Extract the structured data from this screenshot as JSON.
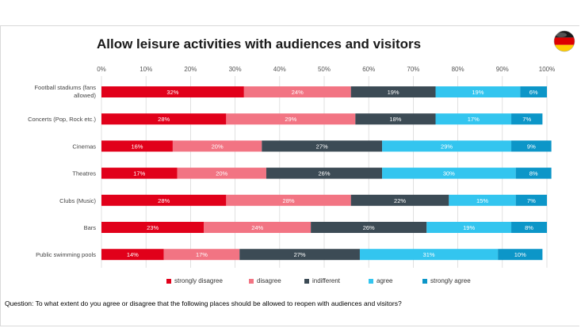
{
  "title": "Allow leisure activities with audiences and visitors",
  "flag_icon": "germany-flag-icon",
  "question": "Question: To what extent do you agree or disagree that the following places should be allowed to reopen with audiences and visitors?",
  "colors": {
    "strongly_disagree": "#e1001a",
    "disagree": "#f27483",
    "indifferent": "#3c4b55",
    "agree": "#33c5ef",
    "strongly_agree": "#0c96c8"
  },
  "chart_data": {
    "type": "bar",
    "orientation": "horizontal",
    "stacked": true,
    "title": "Allow leisure activities with audiences and visitors",
    "categories": [
      "Football stadiums (fans allowed)",
      "Concerts (Pop, Rock etc.)",
      "Cinemas",
      "Theatres",
      "Clubs (Music)",
      "Bars",
      "Public swimming pools"
    ],
    "series": [
      {
        "name": "strongly disagree",
        "values": [
          32,
          28,
          16,
          17,
          28,
          23,
          14
        ]
      },
      {
        "name": "disagree",
        "values": [
          24,
          29,
          20,
          20,
          28,
          24,
          17
        ]
      },
      {
        "name": "indifferent",
        "values": [
          19,
          18,
          27,
          26,
          22,
          26,
          27
        ]
      },
      {
        "name": "agree",
        "values": [
          19,
          17,
          29,
          30,
          15,
          19,
          31
        ]
      },
      {
        "name": "strongly agree",
        "values": [
          6,
          7,
          9,
          8,
          7,
          8,
          10
        ]
      }
    ],
    "xticks": [
      "0%",
      "10%",
      "20%",
      "30%",
      "40%",
      "50%",
      "60%",
      "70%",
      "80%",
      "90%",
      "100%"
    ],
    "xlim": [
      0,
      100
    ],
    "grid": true,
    "legend_position": "bottom",
    "label_suffix": "%"
  }
}
